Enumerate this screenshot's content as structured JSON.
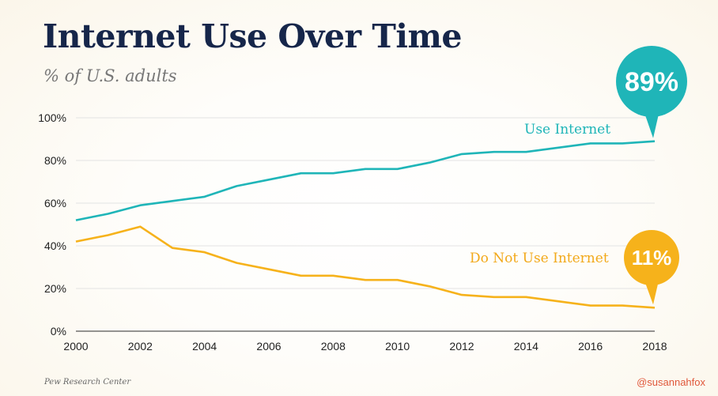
{
  "title": "Internet Use Over Time",
  "subtitle": "% of U.S. adults",
  "source": "Pew Research Center",
  "handle": "@susannahfox",
  "colors": {
    "use_internet": "#1fb5b8",
    "do_not_use": "#f6b21b",
    "title": "#16264a",
    "grid": "#e3e3e3"
  },
  "chart_data": {
    "type": "line",
    "title": "Internet Use Over Time",
    "subtitle": "% of U.S. adults",
    "xlabel": "",
    "ylabel": "",
    "x": [
      2000,
      2001,
      2002,
      2003,
      2004,
      2005,
      2006,
      2007,
      2008,
      2009,
      2010,
      2011,
      2012,
      2013,
      2014,
      2015,
      2016,
      2017,
      2018
    ],
    "xlim": [
      2000,
      2018
    ],
    "ylim": [
      0,
      100
    ],
    "x_ticks": [
      "2000",
      "2002",
      "2004",
      "2006",
      "2008",
      "2010",
      "2012",
      "2014",
      "2016",
      "2018"
    ],
    "y_ticks": [
      "0%",
      "20%",
      "40%",
      "60%",
      "80%",
      "100%"
    ],
    "grid": true,
    "series": [
      {
        "name": "Use Internet",
        "color": "#1fb5b8",
        "values": [
          52,
          55,
          59,
          61,
          63,
          68,
          71,
          74,
          74,
          76,
          76,
          79,
          83,
          84,
          84,
          86,
          88,
          88,
          89
        ],
        "callout": "89%"
      },
      {
        "name": "Do Not Use Internet",
        "color": "#f6b21b",
        "values": [
          42,
          45,
          49,
          39,
          37,
          32,
          29,
          26,
          26,
          24,
          24,
          21,
          17,
          16,
          16,
          14,
          12,
          12,
          11
        ],
        "callout": "11%"
      }
    ]
  }
}
